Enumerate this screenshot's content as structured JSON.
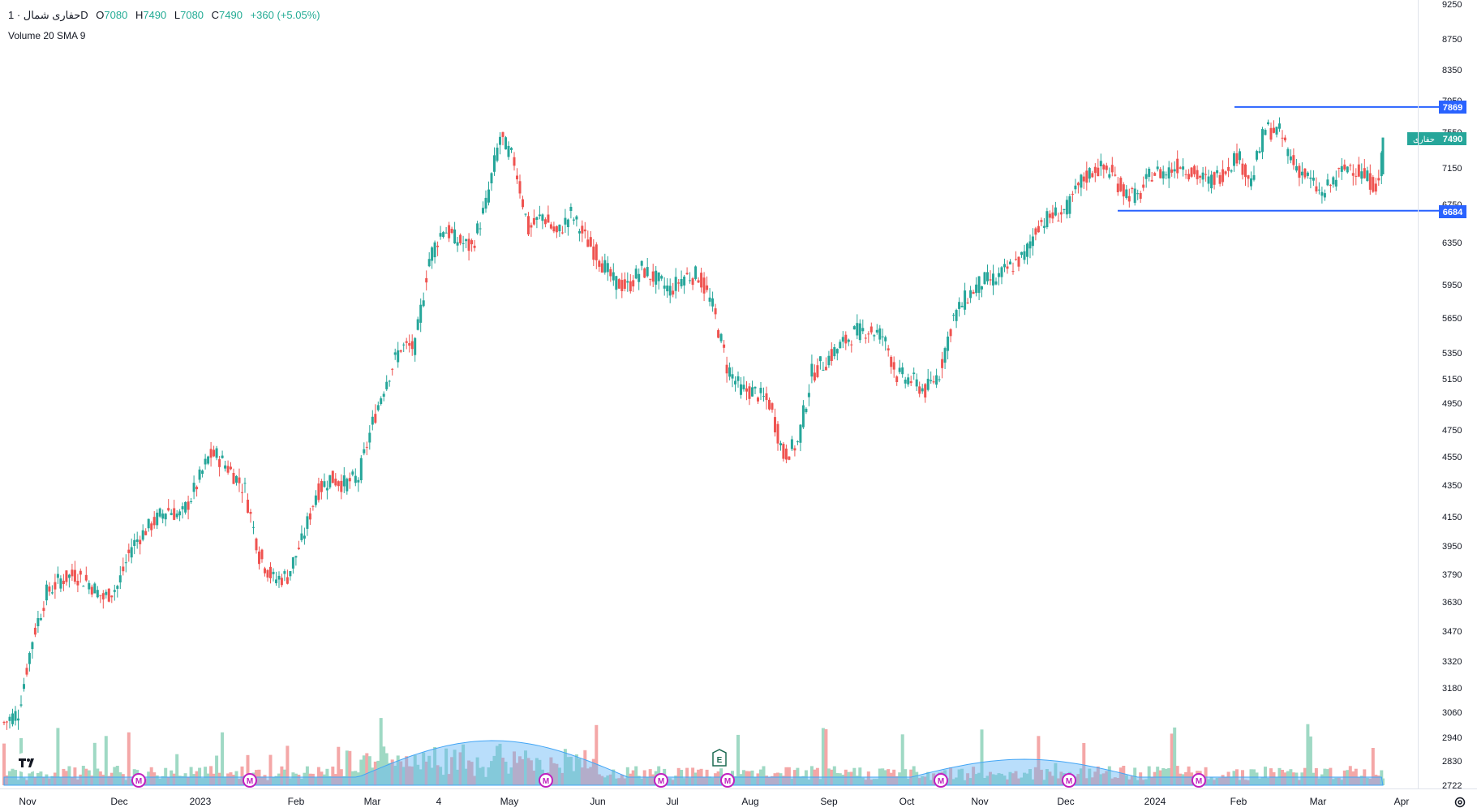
{
  "header": {
    "symbol": "حفاری شمال · 1D",
    "open_label": "O",
    "open": "7080",
    "high_label": "H",
    "high": "7490",
    "low_label": "L",
    "low": "7080",
    "close_label": "C",
    "close": "7490",
    "change": "+360 (+5.05%)",
    "volume_indicator": "Volume 20 SMA 9"
  },
  "colors": {
    "up": "#26a69a",
    "down": "#ef5350",
    "vol_up": "#9fd9c4",
    "vol_down": "#f4a7a7",
    "sma_fill": "#64b5f6",
    "level": "#2962ff"
  },
  "chart_data": {
    "type": "candlestick",
    "y_ticks": [
      "9250",
      "8750",
      "8350",
      "7950",
      "7550",
      "7150",
      "6750",
      "6350",
      "5950",
      "5650",
      "5350",
      "5150",
      "4950",
      "4750",
      "4550",
      "4350",
      "4150",
      "3950",
      "3790",
      "3630",
      "3470",
      "3320",
      "3180",
      "3060",
      "2940",
      "2830",
      "2722"
    ],
    "x_ticks": [
      "Nov",
      "Dec",
      "2023",
      "Feb",
      "Mar",
      "4",
      "May",
      "Jun",
      "Jul",
      "Aug",
      "Sep",
      "Oct",
      "Nov",
      "Dec",
      "2024",
      "Feb",
      "Mar",
      "Apr"
    ],
    "price_labels": {
      "level_high": "7869",
      "last_price": "7490",
      "last_price_symbol": "حفاری",
      "level_low": "6684"
    },
    "horizontal_levels": [
      7869,
      6684
    ],
    "last_close": 7490,
    "event_markers": {
      "dividend_label": "M",
      "earnings_label": "E"
    },
    "anchors": [
      [
        0,
        3010
      ],
      [
        10,
        3060
      ],
      [
        20,
        3430
      ],
      [
        30,
        3680
      ],
      [
        40,
        3760
      ],
      [
        50,
        3790
      ],
      [
        60,
        3740
      ],
      [
        70,
        3650
      ],
      [
        80,
        3720
      ],
      [
        90,
        3950
      ],
      [
        100,
        4060
      ],
      [
        115,
        4200
      ],
      [
        125,
        4150
      ],
      [
        135,
        4330
      ],
      [
        145,
        4560
      ],
      [
        150,
        4560
      ],
      [
        160,
        4450
      ],
      [
        170,
        4320
      ],
      [
        180,
        3900
      ],
      [
        190,
        3760
      ],
      [
        200,
        3780
      ],
      [
        210,
        3980
      ],
      [
        220,
        4300
      ],
      [
        230,
        4400
      ],
      [
        240,
        4360
      ],
      [
        250,
        4400
      ],
      [
        260,
        4800
      ],
      [
        270,
        5150
      ],
      [
        280,
        5400
      ],
      [
        290,
        5400
      ],
      [
        300,
        6200
      ],
      [
        310,
        6500
      ],
      [
        320,
        6370
      ],
      [
        330,
        6300
      ],
      [
        340,
        6750
      ],
      [
        350,
        7500
      ],
      [
        360,
        7220
      ],
      [
        370,
        6480
      ],
      [
        380,
        6640
      ],
      [
        390,
        6430
      ],
      [
        400,
        6650
      ],
      [
        410,
        6400
      ],
      [
        420,
        6200
      ],
      [
        430,
        5980
      ],
      [
        440,
        5930
      ],
      [
        450,
        6100
      ],
      [
        460,
        6000
      ],
      [
        470,
        5900
      ],
      [
        480,
        6030
      ],
      [
        490,
        6040
      ],
      [
        500,
        5750
      ],
      [
        510,
        5250
      ],
      [
        520,
        5060
      ],
      [
        530,
        5040
      ],
      [
        540,
        4950
      ],
      [
        550,
        4560
      ],
      [
        560,
        4650
      ],
      [
        570,
        5190
      ],
      [
        580,
        5290
      ],
      [
        590,
        5410
      ],
      [
        600,
        5520
      ],
      [
        610,
        5550
      ],
      [
        620,
        5500
      ],
      [
        630,
        5180
      ],
      [
        640,
        5140
      ],
      [
        650,
        5050
      ],
      [
        660,
        5200
      ],
      [
        670,
        5660
      ],
      [
        680,
        5850
      ],
      [
        690,
        5980
      ],
      [
        700,
        6000
      ],
      [
        710,
        6120
      ],
      [
        720,
        6220
      ],
      [
        730,
        6550
      ],
      [
        740,
        6630
      ],
      [
        750,
        6700
      ],
      [
        760,
        7000
      ],
      [
        770,
        7150
      ],
      [
        780,
        7120
      ],
      [
        790,
        6900
      ],
      [
        800,
        6820
      ],
      [
        810,
        7100
      ],
      [
        820,
        7100
      ],
      [
        830,
        7200
      ],
      [
        840,
        7080
      ],
      [
        850,
        7000
      ],
      [
        860,
        7100
      ],
      [
        870,
        7300
      ],
      [
        880,
        7000
      ],
      [
        890,
        7600
      ],
      [
        900,
        7550
      ],
      [
        910,
        7200
      ],
      [
        920,
        7040
      ],
      [
        930,
        6850
      ],
      [
        940,
        7050
      ],
      [
        950,
        7190
      ],
      [
        960,
        7050
      ],
      [
        970,
        6950
      ],
      [
        973,
        7490
      ]
    ]
  }
}
